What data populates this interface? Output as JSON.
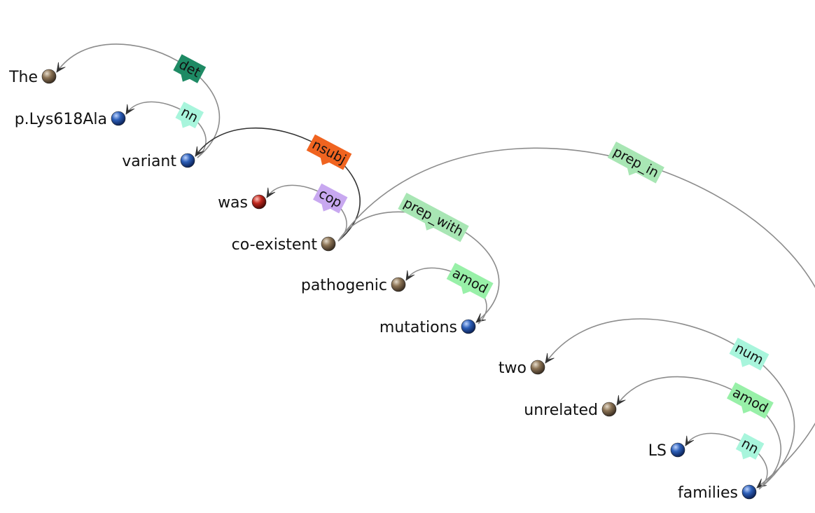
{
  "words": [
    {
      "id": "The",
      "text": "The",
      "color": "#8b7355"
    },
    {
      "id": "p-lys618ala",
      "text": "p.Lys618Ala",
      "color": "#2d5fb8"
    },
    {
      "id": "variant",
      "text": "variant",
      "color": "#2d5fb8"
    },
    {
      "id": "was",
      "text": "was",
      "color": "#c0281e"
    },
    {
      "id": "co-existent",
      "text": "co-existent",
      "color": "#8b7355"
    },
    {
      "id": "pathogenic",
      "text": "pathogenic",
      "color": "#8b7355"
    },
    {
      "id": "mutations",
      "text": "mutations",
      "color": "#2d5fb8"
    },
    {
      "id": "two",
      "text": "two",
      "color": "#8b7355"
    },
    {
      "id": "unrelated",
      "text": "unrelated",
      "color": "#8b7355"
    },
    {
      "id": "LS",
      "text": "LS",
      "color": "#2d5fb8"
    },
    {
      "id": "families",
      "text": "families",
      "color": "#2d5fb8"
    }
  ],
  "relations": [
    {
      "label": "det",
      "from": 2,
      "to": 0,
      "color": "#1e8a64"
    },
    {
      "label": "nn",
      "from": 2,
      "to": 1,
      "color": "#a8f5dc"
    },
    {
      "label": "nsubj",
      "from": 4,
      "to": 2,
      "color": "#f06420"
    },
    {
      "label": "cop",
      "from": 4,
      "to": 3,
      "color": "#c8a8f0"
    },
    {
      "label": "prep_with",
      "from": 4,
      "to": 6,
      "color": "#a8e6b4"
    },
    {
      "label": "amod",
      "from": 6,
      "to": 5,
      "color": "#98f0a8"
    },
    {
      "label": "prep_in",
      "from": 4,
      "to": 10,
      "color": "#a8e6b4"
    },
    {
      "label": "num",
      "from": 10,
      "to": 7,
      "color": "#a8f5dc"
    },
    {
      "label": "amod",
      "from": 10,
      "to": 8,
      "color": "#98f0a8"
    },
    {
      "label": "nn",
      "from": 10,
      "to": 9,
      "color": "#a8f5dc"
    }
  ]
}
